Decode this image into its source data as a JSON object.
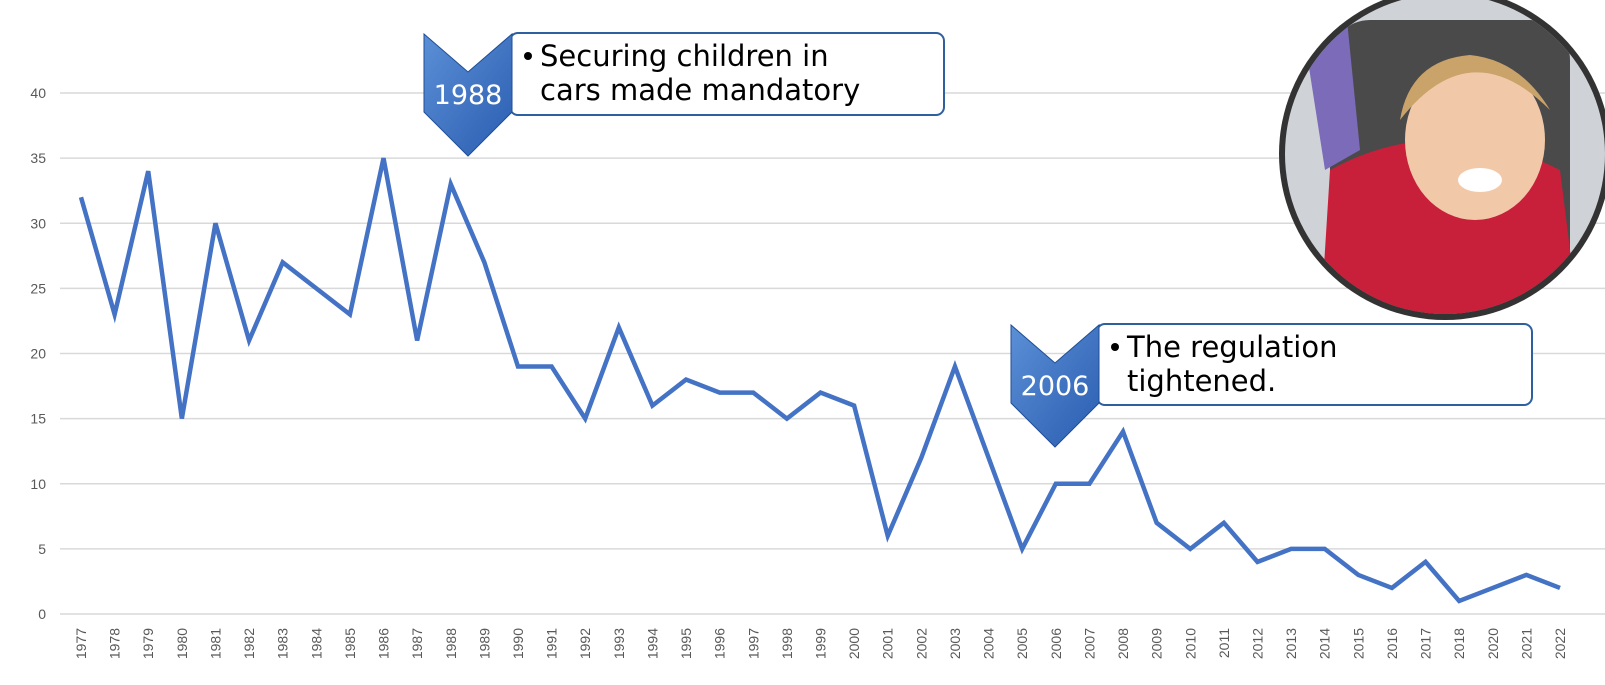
{
  "chart_data": {
    "type": "line",
    "categories": [
      "1977",
      "1978",
      "1979",
      "1980",
      "1981",
      "1982",
      "1983",
      "1984",
      "1985",
      "1986",
      "1987",
      "1988",
      "1989",
      "1990",
      "1991",
      "1992",
      "1993",
      "1994",
      "1995",
      "1996",
      "1997",
      "1998",
      "1999",
      "2000",
      "2001",
      "2002",
      "2003",
      "2004",
      "2005",
      "2006",
      "2007",
      "2008",
      "2009",
      "2010",
      "2011",
      "2012",
      "2013",
      "2014",
      "2015",
      "2016",
      "2017",
      "2018",
      "2020",
      "2021",
      "2022"
    ],
    "values": [
      32,
      23,
      34,
      15,
      30,
      21,
      27,
      25,
      23,
      35,
      21,
      33,
      27,
      19,
      19,
      15,
      22,
      16,
      18,
      17,
      17,
      15,
      17,
      16,
      6,
      12,
      19,
      12,
      5,
      10,
      10,
      14,
      7,
      5,
      7,
      4,
      5,
      5,
      3,
      2,
      4,
      1,
      2,
      3,
      2
    ],
    "color": "#4472c4",
    "ylim": [
      0,
      40
    ],
    "yticks": [
      0,
      5,
      10,
      15,
      20,
      25,
      30,
      35,
      40
    ],
    "grid": true,
    "annotations": [
      {
        "label": "1988",
        "text": [
          "Securing children in",
          "cars made mandatory"
        ]
      },
      {
        "label": "2006",
        "text": [
          "The regulation",
          "tightened."
        ]
      }
    ]
  }
}
